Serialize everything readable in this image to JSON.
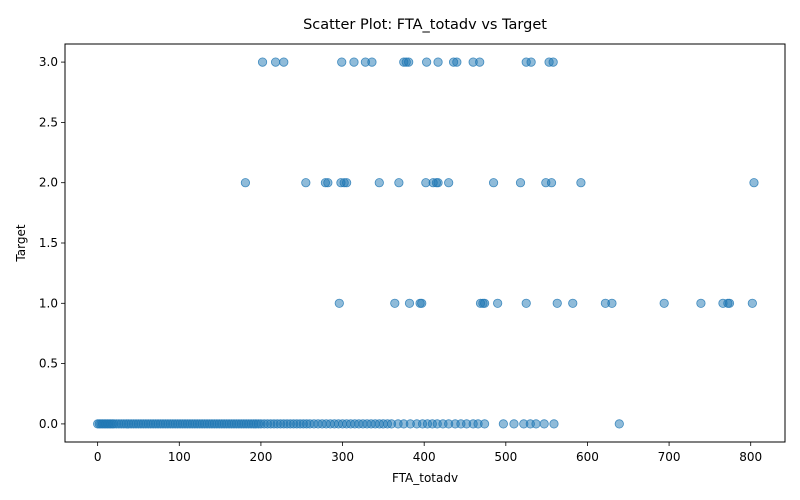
{
  "chart_data": {
    "type": "scatter",
    "title": "Scatter Plot: FTA_totadv vs Target",
    "xlabel": "FTA_totadv",
    "ylabel": "Target",
    "xlim": [
      -40,
      842
    ],
    "ylim": [
      -0.15,
      3.15
    ],
    "xticks": [
      0,
      100,
      200,
      300,
      400,
      500,
      600,
      700,
      800
    ],
    "yticks": [
      0.0,
      0.5,
      1.0,
      1.5,
      2.0,
      2.5,
      3.0
    ],
    "xtick_labels": [
      "0",
      "100",
      "200",
      "300",
      "400",
      "500",
      "600",
      "700",
      "800"
    ],
    "ytick_labels": [
      "0.0",
      "0.5",
      "1.0",
      "1.5",
      "2.0",
      "2.5",
      "3.0"
    ],
    "grid": false,
    "marker_color": "#1f77b4",
    "marker_alpha": 0.5,
    "series": [
      {
        "x": [
          0,
          2,
          4,
          6,
          8,
          10,
          12,
          14,
          16,
          18,
          20,
          23,
          26,
          29,
          32,
          35,
          38,
          41,
          44,
          47,
          50,
          53,
          56,
          59,
          62,
          65,
          68,
          71,
          74,
          77,
          80,
          83,
          86,
          89,
          92,
          95,
          98,
          101,
          104,
          107,
          110,
          113,
          116,
          119,
          122,
          125,
          128,
          131,
          134,
          137,
          140,
          143,
          146,
          149,
          152,
          155,
          158,
          161,
          164,
          167,
          170,
          173,
          176,
          179,
          182,
          185,
          188,
          191,
          194,
          197,
          200,
          204,
          208,
          212,
          216,
          220,
          224,
          228,
          232,
          236,
          240,
          244,
          248,
          252,
          256,
          260,
          265,
          270,
          275,
          280,
          285,
          290,
          295,
          300,
          305,
          310,
          315,
          320,
          325,
          330,
          335,
          340,
          345,
          350,
          355,
          360,
          368,
          375,
          383,
          391,
          398,
          404,
          410,
          416,
          423,
          430,
          438,
          445,
          452,
          460,
          466,
          474,
          497,
          510,
          522,
          530,
          537,
          547,
          559,
          639
        ],
        "y": [
          0,
          0,
          0,
          0,
          0,
          0,
          0,
          0,
          0,
          0,
          0,
          0,
          0,
          0,
          0,
          0,
          0,
          0,
          0,
          0,
          0,
          0,
          0,
          0,
          0,
          0,
          0,
          0,
          0,
          0,
          0,
          0,
          0,
          0,
          0,
          0,
          0,
          0,
          0,
          0,
          0,
          0,
          0,
          0,
          0,
          0,
          0,
          0,
          0,
          0,
          0,
          0,
          0,
          0,
          0,
          0,
          0,
          0,
          0,
          0,
          0,
          0,
          0,
          0,
          0,
          0,
          0,
          0,
          0,
          0,
          0,
          0,
          0,
          0,
          0,
          0,
          0,
          0,
          0,
          0,
          0,
          0,
          0,
          0,
          0,
          0,
          0,
          0,
          0,
          0,
          0,
          0,
          0,
          0,
          0,
          0,
          0,
          0,
          0,
          0,
          0,
          0,
          0,
          0,
          0,
          0,
          0,
          0,
          0,
          0,
          0,
          0,
          0,
          0,
          0,
          0,
          0,
          0,
          0,
          0,
          0,
          0,
          0,
          0,
          0,
          0,
          0,
          0,
          0,
          0
        ]
      },
      {
        "x": [
          296,
          364,
          382,
          395,
          397,
          469,
          472,
          474,
          490,
          525,
          563,
          582,
          622,
          630,
          694,
          739,
          766,
          772,
          774,
          802
        ],
        "y": [
          1,
          1,
          1,
          1,
          1,
          1,
          1,
          1,
          1,
          1,
          1,
          1,
          1,
          1,
          1,
          1,
          1,
          1,
          1,
          1
        ]
      },
      {
        "x": [
          181,
          255,
          279,
          282,
          298,
          302,
          305,
          345,
          369,
          402,
          411,
          415,
          417,
          430,
          485,
          518,
          549,
          556,
          592,
          804
        ],
        "y": [
          2,
          2,
          2,
          2,
          2,
          2,
          2,
          2,
          2,
          2,
          2,
          2,
          2,
          2,
          2,
          2,
          2,
          2,
          2,
          2
        ]
      },
      {
        "x": [
          202,
          218,
          228,
          299,
          314,
          328,
          336,
          375,
          378,
          381,
          403,
          417,
          436,
          440,
          460,
          468,
          525,
          531,
          553,
          558
        ],
        "y": [
          3,
          3,
          3,
          3,
          3,
          3,
          3,
          3,
          3,
          3,
          3,
          3,
          3,
          3,
          3,
          3,
          3,
          3,
          3,
          3
        ]
      }
    ]
  }
}
